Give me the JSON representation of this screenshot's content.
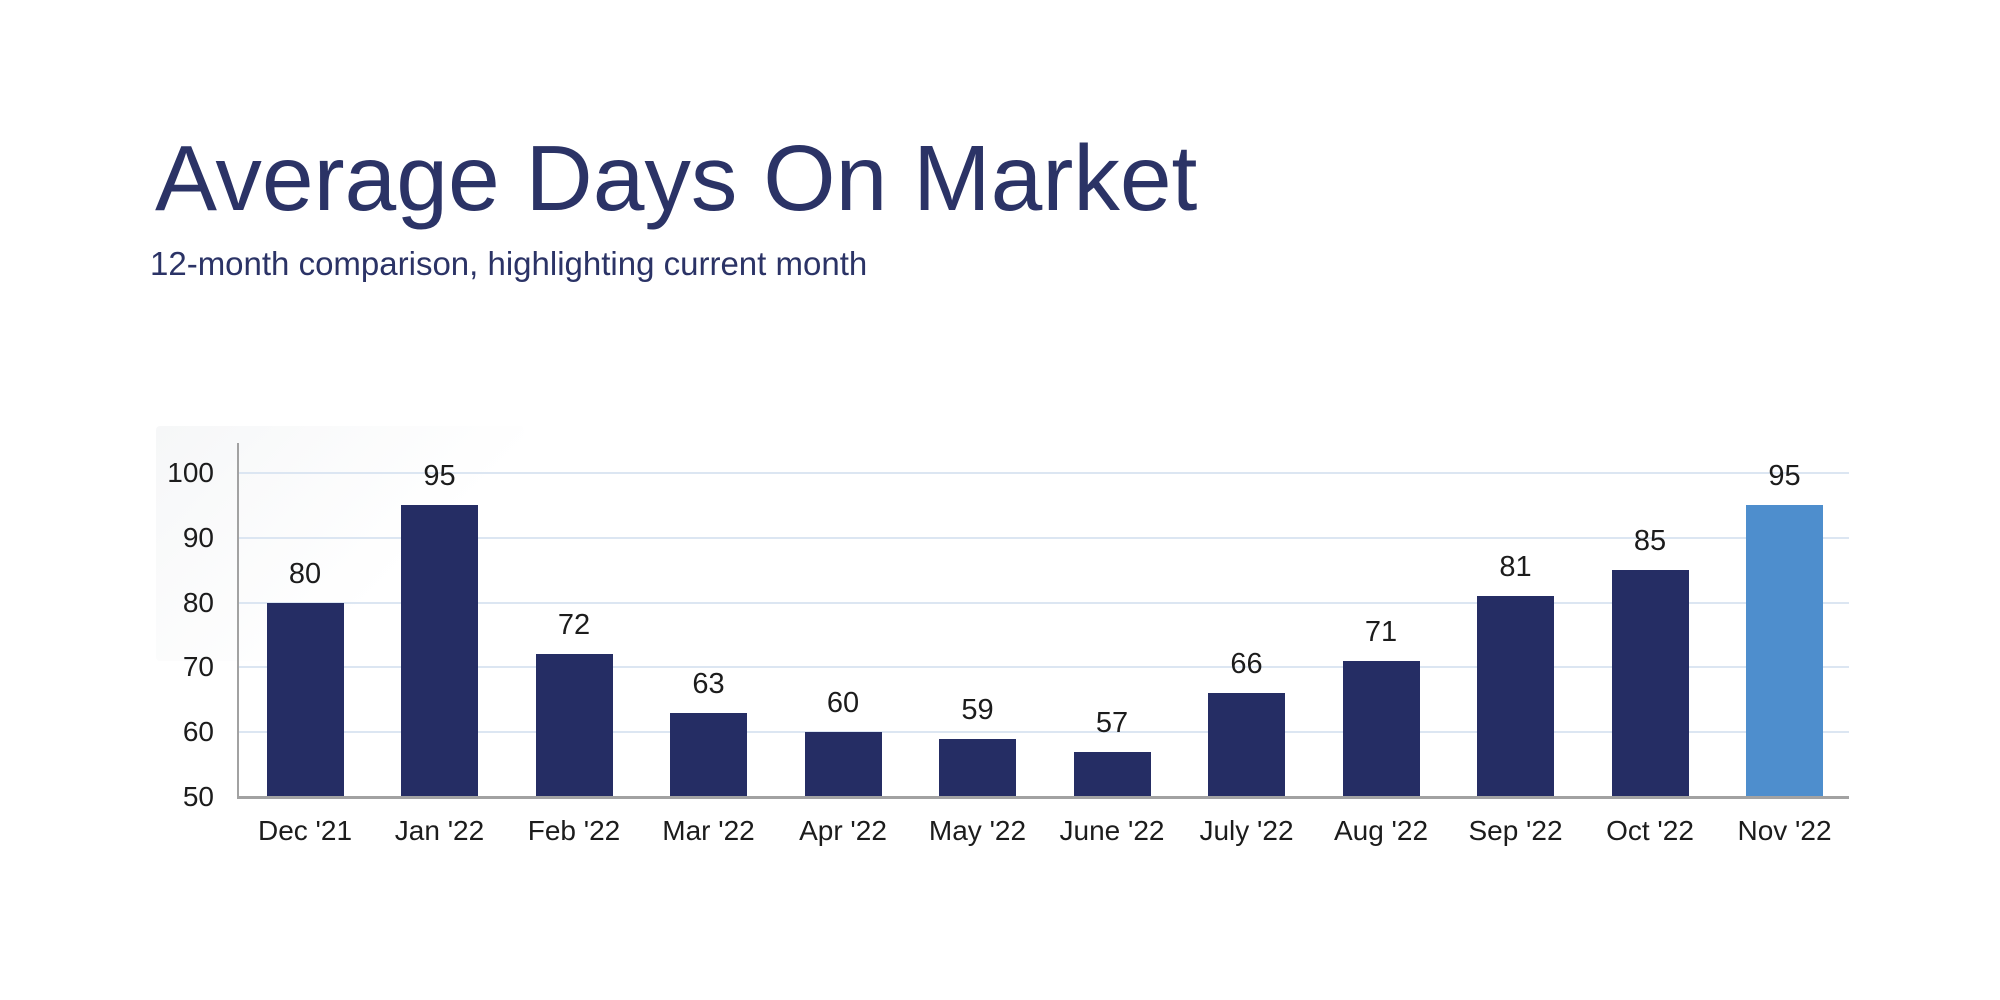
{
  "page": {
    "background_color": "#ffffff"
  },
  "header": {
    "title": "Average Days On Market",
    "subtitle": "12-month comparison, highlighting current month",
    "title_color": "#2b3366"
  },
  "chart_data": {
    "type": "bar",
    "title": "Average Days On Market",
    "subtitle": "12-month comparison, highlighting current month",
    "categories": [
      "Dec '21",
      "Jan '22",
      "Feb '22",
      "Mar '22",
      "Apr '22",
      "May '22",
      "June '22",
      "July '22",
      "Aug '22",
      "Sep '22",
      "Oct '22",
      "Nov '22"
    ],
    "values": [
      80,
      95,
      72,
      63,
      60,
      59,
      57,
      66,
      71,
      81,
      85,
      95
    ],
    "data_labels": [
      80,
      95,
      72,
      63,
      60,
      59,
      57,
      66,
      71,
      81,
      85,
      95
    ],
    "highlighted_category": "Nov '22",
    "highlight_index": 11,
    "xlabel": "",
    "ylabel": "",
    "ylim": [
      50,
      100
    ],
    "yticks": [
      50,
      60,
      70,
      80,
      90,
      100
    ],
    "grid": "horizontal-only",
    "legend": "none",
    "colors": {
      "bar": "#252d64",
      "highlight": "#4e8ecd",
      "axis": "#a2a2a2",
      "gridline": "#dce6f2",
      "tick_label": "#1c1c1c"
    }
  }
}
